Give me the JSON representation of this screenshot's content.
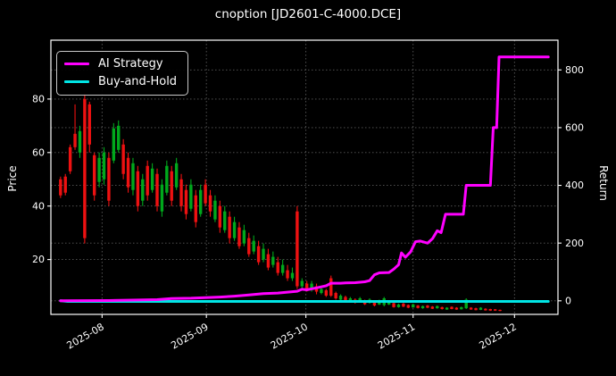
{
  "window": {
    "title": "cnoption [JD2601-C-4000.DCE]"
  },
  "chart_data": {
    "type": "candlestick+line",
    "title": "cnoption [JD2601-C-4000.DCE]",
    "background_color": "#000000",
    "text_color": "#ffffff",
    "grid": {
      "on": true,
      "style": "dotted",
      "color": "#5a5a5a"
    },
    "left_axis": {
      "label": "Price",
      "ticks": [
        20,
        40,
        60,
        80
      ],
      "range": [
        -0.5,
        102
      ]
    },
    "right_axis": {
      "label": "Return",
      "ticks": [
        0,
        200,
        400,
        600,
        800
      ],
      "range": [
        -47,
        903
      ]
    },
    "x_axis": {
      "range": [
        -2,
        103
      ],
      "ticks": [
        {
          "label": "2025-08",
          "i": 8.6
        },
        {
          "label": "2025-09",
          "i": 30.2
        },
        {
          "label": "2025-10",
          "i": 50.8
        },
        {
          "label": "2025-11",
          "i": 73.0
        },
        {
          "label": "2025-12",
          "i": 94.0
        }
      ],
      "label_rotation_deg": 30
    },
    "legend": {
      "position": "upper-left",
      "items": [
        {
          "label": "AI Strategy",
          "color": "#ff00ff"
        },
        {
          "label": "Buy-and-Hold",
          "color": "#00e5e5"
        }
      ]
    },
    "series": {
      "candles": {
        "axis": "left",
        "up_color": "#00a81c",
        "down_color": "#ee1111",
        "format": "[high, low, body_top, body_bottom, color(r=down,g=up)]",
        "values": [
          [
            51,
            43,
            50,
            44,
            "r"
          ],
          [
            52,
            44,
            51,
            45,
            "r"
          ],
          [
            63,
            52,
            62,
            53,
            "r"
          ],
          [
            78,
            61,
            67,
            62,
            "r"
          ],
          [
            70,
            58,
            68,
            60,
            "g"
          ],
          [
            82,
            26,
            80,
            28,
            "r"
          ],
          [
            79,
            60,
            78,
            63,
            "r"
          ],
          [
            60,
            42,
            59,
            44,
            "r"
          ],
          [
            60,
            47,
            58,
            49,
            "g"
          ],
          [
            62,
            48,
            60,
            50,
            "g"
          ],
          [
            60,
            40,
            58,
            42,
            "r"
          ],
          [
            71,
            56,
            69,
            57,
            "g"
          ],
          [
            72,
            60,
            70,
            61,
            "g"
          ],
          [
            65,
            50,
            63,
            52,
            "r"
          ],
          [
            60,
            45,
            58,
            47,
            "r"
          ],
          [
            58,
            44,
            56,
            46,
            "g"
          ],
          [
            55,
            38,
            53,
            40,
            "r"
          ],
          [
            52,
            40,
            50,
            42,
            "g"
          ],
          [
            57,
            42,
            55,
            44,
            "r"
          ],
          [
            56,
            45,
            54,
            46,
            "g"
          ],
          [
            54,
            38,
            52,
            40,
            "r"
          ],
          [
            50,
            36,
            48,
            38,
            "g"
          ],
          [
            57,
            44,
            55,
            45,
            "g"
          ],
          [
            55,
            40,
            53,
            42,
            "r"
          ],
          [
            58,
            46,
            56,
            47,
            "g"
          ],
          [
            52,
            38,
            50,
            40,
            "r"
          ],
          [
            48,
            35,
            46,
            37,
            "r"
          ],
          [
            50,
            38,
            48,
            39,
            "g"
          ],
          [
            46,
            32,
            44,
            34,
            "r"
          ],
          [
            48,
            36,
            46,
            37,
            "g"
          ],
          [
            50,
            40,
            48,
            41,
            "r"
          ],
          [
            46,
            36,
            44,
            38,
            "r"
          ],
          [
            44,
            34,
            42,
            35,
            "g"
          ],
          [
            42,
            30,
            40,
            32,
            "r"
          ],
          [
            40,
            30,
            38,
            31,
            "g"
          ],
          [
            38,
            26,
            36,
            28,
            "r"
          ],
          [
            36,
            27,
            34,
            28,
            "g"
          ],
          [
            34,
            24,
            32,
            25,
            "r"
          ],
          [
            33,
            25,
            31,
            26,
            "g"
          ],
          [
            30,
            21,
            28,
            22,
            "r"
          ],
          [
            29,
            22,
            27,
            23,
            "g"
          ],
          [
            27,
            18,
            25,
            19,
            "r"
          ],
          [
            26,
            19,
            24,
            20,
            "g"
          ],
          [
            24,
            16,
            22,
            17,
            "r"
          ],
          [
            23,
            17,
            21,
            18,
            "g"
          ],
          [
            21,
            14,
            19,
            15,
            "r"
          ],
          [
            20,
            14,
            18,
            15,
            "g"
          ],
          [
            18,
            12,
            16,
            13,
            "r"
          ],
          [
            17,
            12,
            15,
            13,
            "g"
          ],
          [
            40,
            9,
            38,
            10,
            "r"
          ],
          [
            13,
            9,
            12,
            10,
            "g"
          ],
          [
            12,
            8,
            11,
            9,
            "r"
          ],
          [
            12,
            8,
            11,
            9,
            "g"
          ],
          [
            11,
            7,
            10,
            8,
            "r"
          ],
          [
            10,
            7,
            9,
            7.5,
            "g"
          ],
          [
            9,
            6,
            8.5,
            6.5,
            "r"
          ],
          [
            14,
            6,
            13,
            6.5,
            "r"
          ],
          [
            8,
            5,
            7.5,
            5.5,
            "r"
          ],
          [
            7,
            4.5,
            6.5,
            5,
            "g"
          ],
          [
            6.5,
            4,
            6,
            4.5,
            "r"
          ],
          [
            6,
            4,
            5.5,
            4.3,
            "g"
          ],
          [
            5.5,
            3.5,
            5,
            4,
            "r"
          ],
          [
            6,
            4,
            5.5,
            4.3,
            "g"
          ],
          [
            5,
            3,
            4.6,
            3.3,
            "r"
          ],
          [
            5.5,
            3.5,
            5,
            3.8,
            "g"
          ],
          [
            4.5,
            2.5,
            4.2,
            2.8,
            "r"
          ],
          [
            5,
            3,
            4.6,
            3.2,
            "g"
          ],
          [
            6,
            2.5,
            5.5,
            3,
            "g"
          ],
          [
            4.5,
            3,
            4.2,
            3.2,
            "g"
          ],
          [
            4,
            2,
            3.7,
            2.2,
            "r"
          ],
          [
            3.5,
            2,
            3.2,
            2.2,
            "g"
          ],
          [
            3.8,
            2.2,
            3.5,
            2.4,
            "r"
          ],
          [
            3.2,
            1.8,
            3,
            2,
            "r"
          ],
          [
            3.5,
            2,
            3.2,
            2.1,
            "g"
          ],
          [
            3,
            1.7,
            2.8,
            1.9,
            "r"
          ],
          [
            2.8,
            1.6,
            2.6,
            1.8,
            "g"
          ],
          [
            3,
            1.8,
            2.8,
            2,
            "r"
          ],
          [
            2.6,
            1.5,
            2.4,
            1.6,
            "r"
          ],
          [
            2.8,
            1.6,
            2.6,
            1.8,
            "g"
          ],
          [
            2.4,
            1.3,
            2.2,
            1.5,
            "r"
          ],
          [
            2.2,
            1.2,
            2,
            1.3,
            "g"
          ],
          [
            2.5,
            1.4,
            2.3,
            1.5,
            "r"
          ],
          [
            2.2,
            1.2,
            2,
            1.3,
            "r"
          ],
          [
            2.4,
            1.3,
            2.2,
            1.4,
            "g"
          ],
          [
            5.5,
            1.5,
            5,
            1.8,
            "g"
          ],
          [
            2.2,
            1.2,
            2,
            1.3,
            "r"
          ],
          [
            2,
            1,
            1.8,
            1.1,
            "r"
          ],
          [
            2.2,
            1.1,
            2,
            1.2,
            "g"
          ],
          [
            1.8,
            0.9,
            1.6,
            1,
            "r"
          ],
          [
            1.6,
            0.8,
            1.5,
            0.9,
            "r"
          ],
          [
            1.5,
            0.8,
            1.4,
            0.9,
            "r"
          ],
          [
            1.3,
            0.7,
            1.2,
            0.8,
            "r"
          ]
        ]
      },
      "ai_strategy": {
        "name": "AI Strategy",
        "axis": "right",
        "color": "#ff00ff",
        "line_width": 3,
        "points": [
          [
            0,
            0
          ],
          [
            5,
            0.5
          ],
          [
            10,
            1
          ],
          [
            15,
            2.5
          ],
          [
            20,
            4
          ],
          [
            23,
            8
          ],
          [
            27,
            9
          ],
          [
            30,
            11
          ],
          [
            33,
            13
          ],
          [
            36,
            16
          ],
          [
            39,
            20
          ],
          [
            42,
            25
          ],
          [
            45,
            27
          ],
          [
            47,
            30
          ],
          [
            49,
            33
          ],
          [
            50,
            40
          ],
          [
            51,
            38
          ],
          [
            53,
            45
          ],
          [
            55,
            52
          ],
          [
            56,
            61
          ],
          [
            58,
            61
          ],
          [
            59,
            62
          ],
          [
            61,
            63
          ],
          [
            63,
            66
          ],
          [
            64,
            70
          ],
          [
            65,
            90
          ],
          [
            66,
            97
          ],
          [
            68,
            98
          ],
          [
            69,
            110
          ],
          [
            70,
            125
          ],
          [
            70.6,
            166
          ],
          [
            71.4,
            151
          ],
          [
            72.5,
            170
          ],
          [
            73.5,
            205
          ],
          [
            74.5,
            207
          ],
          [
            76,
            200
          ],
          [
            77,
            215
          ],
          [
            78,
            243
          ],
          [
            78.8,
            236
          ],
          [
            79.7,
            300
          ],
          [
            83.4,
            300
          ],
          [
            84,
            400
          ],
          [
            89,
            400
          ],
          [
            89.6,
            600
          ],
          [
            90.3,
            600
          ],
          [
            90.8,
            845
          ],
          [
            101,
            845
          ]
        ]
      },
      "buy_and_hold": {
        "name": "Buy-and-Hold",
        "axis": "right",
        "color": "#00e5e5",
        "line_width": 3,
        "points": [
          [
            0,
            0
          ],
          [
            1.5,
            -2
          ],
          [
            101,
            -2
          ]
        ]
      }
    }
  }
}
